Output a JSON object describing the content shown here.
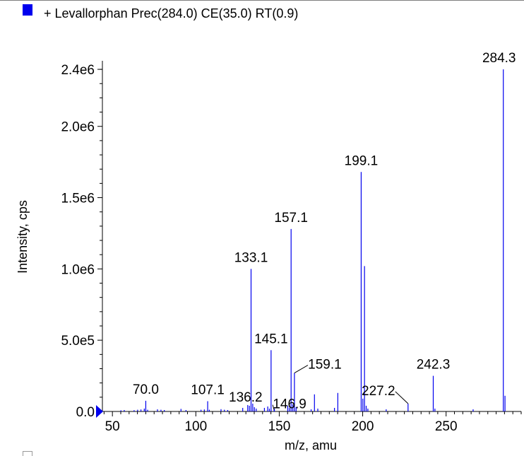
{
  "legend": {
    "text": "+ Levallorphan Prec(284.0) CE(35.0) RT(0.9)",
    "swatch_color": "#0000ee"
  },
  "chart_data": {
    "type": "bar",
    "title": "+ Levallorphan Prec(284.0) CE(35.0) RT(0.9)",
    "xlabel": "m/z, amu",
    "ylabel": "Intensity, cps",
    "xlim": [
      44,
      295
    ],
    "ylim": [
      0,
      2450000
    ],
    "xticks": [
      50,
      100,
      150,
      200,
      250
    ],
    "xtick_labels": [
      "50",
      "100",
      "150",
      "200",
      "250"
    ],
    "yticks": [
      0,
      500000,
      1000000,
      1500000,
      2000000,
      2400000
    ],
    "ytick_labels": [
      "0.0",
      "5.0e5",
      "1.0e6",
      "1.5e6",
      "2.0e6",
      "2.4e6"
    ],
    "series_color": "#0000ee",
    "grid": false,
    "peaks": [
      {
        "x": 55.1,
        "y": 8000
      },
      {
        "x": 57.1,
        "y": 10000
      },
      {
        "x": 63.0,
        "y": 9000
      },
      {
        "x": 65.1,
        "y": 12000
      },
      {
        "x": 67.1,
        "y": 14000
      },
      {
        "x": 69.1,
        "y": 20000
      },
      {
        "x": 70.0,
        "y": 75000
      },
      {
        "x": 71.1,
        "y": 12000
      },
      {
        "x": 77.0,
        "y": 15000
      },
      {
        "x": 79.1,
        "y": 12000
      },
      {
        "x": 81.1,
        "y": 10000
      },
      {
        "x": 91.1,
        "y": 18000
      },
      {
        "x": 94.1,
        "y": 10000
      },
      {
        "x": 103.1,
        "y": 12000
      },
      {
        "x": 105.1,
        "y": 14000
      },
      {
        "x": 107.1,
        "y": 72000
      },
      {
        "x": 108.1,
        "y": 12000
      },
      {
        "x": 115.1,
        "y": 16000
      },
      {
        "x": 117.1,
        "y": 12000
      },
      {
        "x": 119.1,
        "y": 10000
      },
      {
        "x": 128.1,
        "y": 25000
      },
      {
        "x": 131.1,
        "y": 45000
      },
      {
        "x": 132.1,
        "y": 40000
      },
      {
        "x": 133.1,
        "y": 1000000
      },
      {
        "x": 134.1,
        "y": 55000
      },
      {
        "x": 135.1,
        "y": 30000
      },
      {
        "x": 136.2,
        "y": 20000
      },
      {
        "x": 141.1,
        "y": 25000
      },
      {
        "x": 143.1,
        "y": 35000
      },
      {
        "x": 144.1,
        "y": 20000
      },
      {
        "x": 145.1,
        "y": 430000
      },
      {
        "x": 146.9,
        "y": 12000
      },
      {
        "x": 147.1,
        "y": 20000
      },
      {
        "x": 155.1,
        "y": 40000
      },
      {
        "x": 156.1,
        "y": 25000
      },
      {
        "x": 157.1,
        "y": 1280000
      },
      {
        "x": 158.1,
        "y": 50000
      },
      {
        "x": 159.1,
        "y": 270000
      },
      {
        "x": 160.1,
        "y": 30000
      },
      {
        "x": 169.1,
        "y": 15000
      },
      {
        "x": 171.1,
        "y": 120000
      },
      {
        "x": 173.1,
        "y": 20000
      },
      {
        "x": 183.1,
        "y": 25000
      },
      {
        "x": 185.1,
        "y": 130000
      },
      {
        "x": 199.1,
        "y": 1680000
      },
      {
        "x": 200.1,
        "y": 90000
      },
      {
        "x": 201.1,
        "y": 1020000
      },
      {
        "x": 202.1,
        "y": 40000
      },
      {
        "x": 203.1,
        "y": 20000
      },
      {
        "x": 214.1,
        "y": 15000
      },
      {
        "x": 227.2,
        "y": 55000
      },
      {
        "x": 242.3,
        "y": 250000
      },
      {
        "x": 243.3,
        "y": 20000
      },
      {
        "x": 266.2,
        "y": 15000
      },
      {
        "x": 284.3,
        "y": 2400000
      },
      {
        "x": 285.3,
        "y": 110000
      }
    ],
    "annotations": [
      {
        "label": "70.0",
        "x": 70.0
      },
      {
        "label": "107.1",
        "x": 107.1
      },
      {
        "label": "133.1",
        "x": 133.1
      },
      {
        "label": "136.2",
        "x": 136.2
      },
      {
        "label": "145.1",
        "x": 145.1
      },
      {
        "label": "146.9",
        "x": 146.9
      },
      {
        "label": "157.1",
        "x": 157.1
      },
      {
        "label": "159.1",
        "x": 159.1
      },
      {
        "label": "199.1",
        "x": 199.1
      },
      {
        "label": "227.2",
        "x": 227.2
      },
      {
        "label": "242.3",
        "x": 242.3
      },
      {
        "label": "284.3",
        "x": 284.3
      }
    ]
  }
}
